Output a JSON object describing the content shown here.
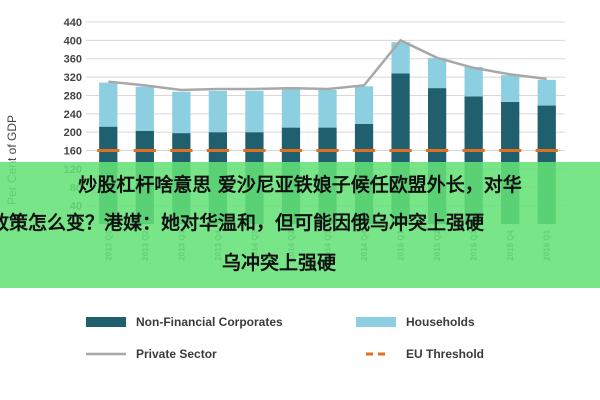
{
  "chart_data": {
    "type": "bar",
    "stacked": true,
    "ylabel": "Per Cent of GDP",
    "ylim": [
      0,
      440
    ],
    "yticks": [
      0,
      40,
      80,
      120,
      160,
      200,
      240,
      280,
      320,
      360,
      400,
      440
    ],
    "categories": [
      "2013 Q1",
      "2013 Q2",
      "2013 Q3",
      "2013 Q4",
      "2014 Q1",
      "2014 Q2",
      "2014 Q3",
      "2014 Q4",
      "2015 Q1",
      "2015 Q2",
      "2015 Q3",
      "2015 Q4",
      "2016 Q1"
    ],
    "series": [
      {
        "name": "Non-Financial Corporates",
        "type": "bar",
        "color": "#1f5f6e",
        "values": [
          212,
          203,
          198,
          200,
          200,
          210,
          210,
          218,
          328,
          296,
          278,
          266,
          258
        ]
      },
      {
        "name": "Households",
        "type": "bar",
        "color": "#8ccfe0",
        "values": [
          96,
          96,
          90,
          90,
          90,
          84,
          82,
          82,
          68,
          66,
          64,
          58,
          56
        ]
      },
      {
        "name": "Private Sector",
        "type": "line",
        "color": "#a8a8a8",
        "values": [
          310,
          302,
          292,
          294,
          294,
          296,
          294,
          302,
          400,
          362,
          340,
          326,
          316
        ]
      },
      {
        "name": "EU Threshold",
        "type": "line-dashed",
        "color": "#e07020",
        "values": [
          160,
          160,
          160,
          160,
          160,
          160,
          160,
          160,
          160,
          160,
          160,
          160,
          160
        ]
      }
    ],
    "legend": "bottom",
    "grid": true
  },
  "overlay": {
    "line1": "炒股杠杆啥意思 爱沙尼亚铁娘子候任欧盟外长，对华",
    "line2": "政策怎么变？港媒：她对华温和，但可能因俄乌冲突上强硬",
    "line3": "乌冲突上强硬"
  }
}
